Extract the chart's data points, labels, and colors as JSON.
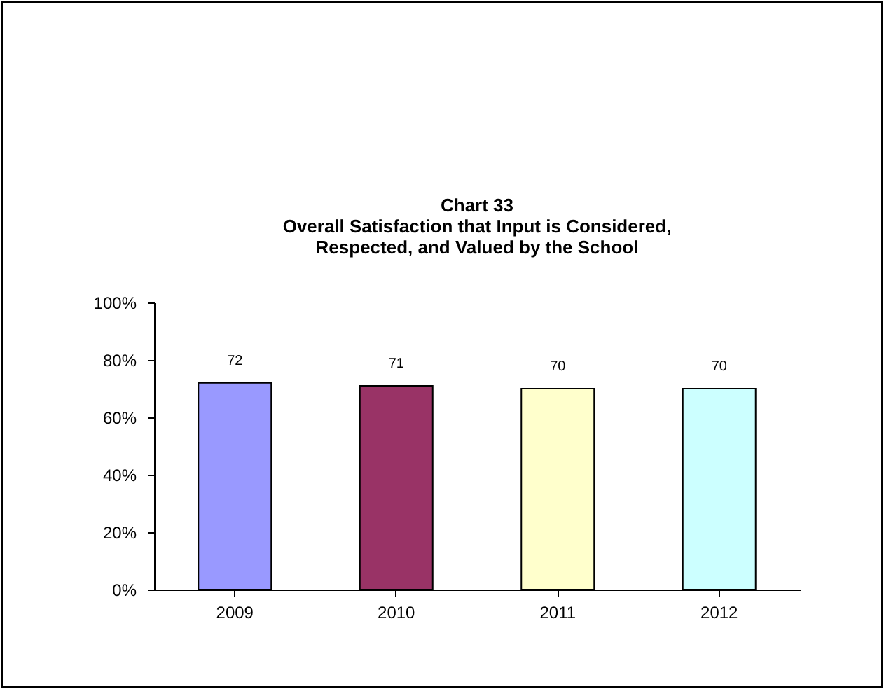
{
  "chart_data": {
    "type": "bar",
    "title": "Chart 33\nOverall Satisfaction that Input is Considered,\nRespected, and Valued by the School",
    "categories": [
      "2009",
      "2010",
      "2011",
      "2012"
    ],
    "values": [
      72,
      71,
      70,
      70
    ],
    "colors": [
      "#9999ff",
      "#993366",
      "#ffffcc",
      "#ccffff"
    ],
    "ylim": [
      0,
      100
    ],
    "yticks": [
      {
        "value": 0,
        "label": "0%"
      },
      {
        "value": 20,
        "label": "20%"
      },
      {
        "value": 40,
        "label": "40%"
      },
      {
        "value": 60,
        "label": "60%"
      },
      {
        "value": 80,
        "label": "80%"
      },
      {
        "value": 100,
        "label": "100%"
      }
    ],
    "data_labels": true,
    "grid": false,
    "legend": false
  }
}
